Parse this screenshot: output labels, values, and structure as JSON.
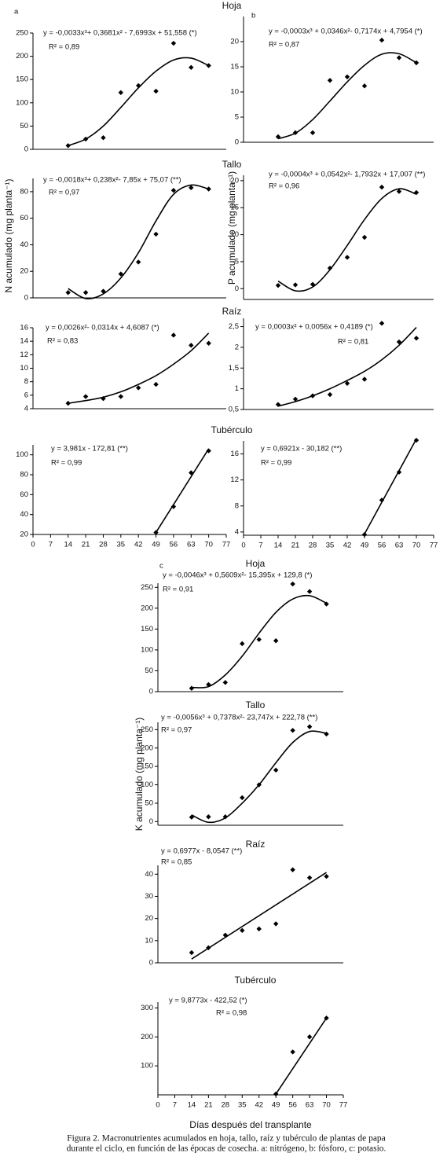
{
  "panel_labels": [
    "a",
    "b",
    "c"
  ],
  "y_labels": [
    "N acumulado (mg planta⁻¹)",
    "P acumulado (mg planta⁻¹)",
    "K acumulado (mg planta⁻¹)"
  ],
  "x_label": "Días después del transplante",
  "caption": [
    "Figura 2. Macronutrientes acumulados en hoja, tallo, raíz y tubérculo de plantas de papa",
    "durante el ciclo, en función de las épocas de cosecha. a: nitrógeno, b: fósforo, c: potasio."
  ],
  "chart_data": [
    {
      "type": "scatter",
      "title": "Hoja",
      "equation": "y = -0,0033x³+ 0,3681x² - 7,6993x + 51,558 (*)",
      "r2": "R² = 0,89",
      "xlim": [
        0,
        77
      ],
      "ylim": [
        0,
        250
      ],
      "yticks": [
        0,
        50,
        100,
        150,
        200,
        250
      ],
      "points": {
        "x": [
          14,
          21,
          28,
          35,
          42,
          49,
          56,
          63,
          70
        ],
        "values": [
          8,
          22,
          25,
          122,
          137,
          125,
          228,
          176,
          180
        ]
      },
      "fit": {
        "x": [
          14,
          21,
          28,
          35,
          42,
          49,
          56,
          63,
          70
        ],
        "values": [
          8,
          22,
          50,
          90,
          132,
          168,
          192,
          196,
          180
        ]
      }
    },
    {
      "type": "scatter",
      "equation": "y = -0,0003x³ + 0,0346x²- 0,7174x + 4,7954 (*)",
      "r2": "R² = 0,87",
      "xlim": [
        0,
        77
      ],
      "ylim": [
        0,
        25
      ],
      "yticks": [
        0,
        5,
        10,
        15,
        20
      ],
      "points": {
        "x": [
          14,
          21,
          28,
          35,
          42,
          49,
          56,
          63,
          70
        ],
        "values": [
          1.1,
          1.9,
          1.9,
          12.3,
          13,
          11.2,
          20.3,
          16.8,
          15.8
        ]
      },
      "fit": {
        "x": [
          14,
          21,
          28,
          35,
          42,
          49,
          56,
          63,
          70
        ],
        "values": [
          0.7,
          1.8,
          4.5,
          8.2,
          12,
          15.3,
          17.5,
          17.6,
          15.8
        ]
      }
    },
    {
      "type": "scatter",
      "title": "Tallo",
      "equation": "y = -0,0018x³+ 0,238x²- 7,85x + 75,07 (**)",
      "r2": "R² = 0,97",
      "xlim": [
        0,
        77
      ],
      "ylim": [
        0,
        90
      ],
      "yticks": [
        0,
        20,
        40,
        60,
        80
      ],
      "points": {
        "x": [
          14,
          21,
          28,
          35,
          42,
          49,
          56,
          63,
          70
        ],
        "values": [
          4,
          4,
          5,
          18,
          27,
          48,
          81,
          83,
          82
        ]
      },
      "fit": {
        "x": [
          14,
          21,
          28,
          35,
          42,
          49,
          56,
          63,
          70
        ],
        "values": [
          7,
          -0.5,
          3,
          15,
          34,
          58,
          78,
          85,
          82
        ]
      }
    },
    {
      "type": "scatter",
      "equation": "y = -0,0004x³ + 0,0542x²- 1,7932x + 17,007 (**)",
      "r2": "R² = 0,96",
      "xlim": [
        0,
        77
      ],
      "ylim": [
        -2,
        21
      ],
      "yticks": [
        0,
        5,
        10,
        15,
        20
      ],
      "points": {
        "x": [
          14,
          21,
          28,
          35,
          42,
          49,
          56,
          63,
          70
        ],
        "values": [
          0.6,
          0.7,
          0.8,
          3.8,
          5.8,
          9.5,
          18.8,
          18,
          17.8
        ]
      },
      "fit": {
        "x": [
          14,
          21,
          28,
          35,
          42,
          49,
          56,
          63,
          70
        ],
        "values": [
          1.4,
          -0.4,
          0.3,
          3.5,
          8,
          12.8,
          16.7,
          18.5,
          17.5
        ]
      }
    },
    {
      "type": "scatter",
      "title": "Raíz",
      "equation": "y = 0,0026x²- 0,0314x + 4,6087 (*)",
      "r2": "R² = 0,83",
      "xlim": [
        0,
        77
      ],
      "ylim": [
        4,
        16
      ],
      "yticks": [
        4,
        6,
        8,
        10,
        12,
        14,
        16
      ],
      "points": {
        "x": [
          14,
          21,
          28,
          35,
          42,
          49,
          56,
          63,
          70
        ],
        "values": [
          4.8,
          5.8,
          5.5,
          5.8,
          7.1,
          7.6,
          14.9,
          13.4,
          13.7
        ]
      },
      "fit": {
        "x": [
          14,
          21,
          28,
          35,
          42,
          49,
          56,
          63,
          70
        ],
        "values": [
          4.8,
          5.2,
          5.7,
          6.5,
          7.6,
          8.9,
          10.6,
          12.6,
          15.2
        ]
      }
    },
    {
      "type": "scatter",
      "equation": "y = 0,0003x² + 0,0056x + 0,4189 (*)",
      "r2": "R² = 0,81",
      "xlim": [
        0,
        77
      ],
      "ylim": [
        0.5,
        2.7
      ],
      "yticks": [
        {
          "value": 0.5,
          "label": "0,5"
        },
        1,
        {
          "value": 1.5,
          "label": "1,5"
        },
        2,
        {
          "value": 2.5,
          "label": "2,5"
        }
      ],
      "points": {
        "x": [
          14,
          21,
          28,
          35,
          42,
          49,
          56,
          63,
          70
        ],
        "values": [
          0.62,
          0.75,
          0.83,
          0.86,
          1.13,
          1.23,
          2.58,
          2.13,
          2.22
        ]
      },
      "fit": {
        "x": [
          14,
          21,
          28,
          35,
          42,
          49,
          56,
          63,
          70
        ],
        "values": [
          0.58,
          0.69,
          0.83,
          1.0,
          1.2,
          1.42,
          1.7,
          2.05,
          2.48
        ]
      }
    },
    {
      "type": "scatter",
      "title": "Tubérculo",
      "equation": "y = 3,981x - 172,81 (**)",
      "r2": "R² = 0,99",
      "xlim": [
        0,
        77
      ],
      "ylim": [
        20,
        110
      ],
      "yticks": [
        20,
        40,
        60,
        80,
        100
      ],
      "xticks": [
        0,
        7,
        14,
        21,
        28,
        35,
        42,
        49,
        56,
        63,
        70,
        77
      ],
      "points": {
        "x": [
          49,
          56,
          63,
          70
        ],
        "values": [
          22,
          48,
          82,
          104
        ]
      },
      "fit": {
        "x": [
          49,
          70
        ],
        "values": [
          22,
          106
        ]
      }
    },
    {
      "type": "scatter",
      "equation": "y = 0,6921x - 30,182 (**)",
      "r2": "R² = 0,99",
      "xlim": [
        0,
        77
      ],
      "ylim": [
        3.5,
        18
      ],
      "yticks": [
        4,
        8,
        12,
        16
      ],
      "xticks": [
        0,
        7,
        14,
        21,
        28,
        35,
        42,
        49,
        56,
        63,
        70,
        77
      ],
      "points": {
        "x": [
          49,
          56,
          63,
          70
        ],
        "values": [
          3.6,
          8.9,
          13.2,
          18.1
        ]
      },
      "fit": {
        "x": [
          49,
          70
        ],
        "values": [
          3.7,
          18.3
        ]
      }
    },
    {
      "type": "scatter",
      "title": "Hoja",
      "equation": "y = -0,0046x³ + 0,5609x²- 15,395x + 129,8 (*)",
      "r2": "R² = 0,91",
      "xlim": [
        0,
        77
      ],
      "ylim": [
        0,
        260
      ],
      "yticks": [
        0,
        50,
        100,
        150,
        200,
        250
      ],
      "points": {
        "x": [
          14,
          21,
          28,
          35,
          42,
          49,
          56,
          63,
          70
        ],
        "values": [
          8,
          17,
          22,
          115,
          125,
          122,
          258,
          240,
          210
        ]
      },
      "fit": {
        "x": [
          14,
          21,
          28,
          35,
          42,
          49,
          56,
          63,
          70
        ],
        "values": [
          10,
          12,
          40,
          85,
          140,
          190,
          222,
          230,
          212
        ]
      }
    },
    {
      "type": "scatter",
      "title": "Tallo",
      "equation": "y = -0,0056x³ + 0,7378x²- 23,747x + 222,78 (**)",
      "r2": "R² = 0,97",
      "xlim": [
        0,
        77
      ],
      "ylim": [
        -10,
        270
      ],
      "yticks": [
        0,
        50,
        100,
        150,
        200,
        250
      ],
      "points": {
        "x": [
          14,
          21,
          28,
          35,
          42,
          49,
          56,
          63,
          70
        ],
        "values": [
          12,
          13,
          13,
          65,
          100,
          140,
          248,
          258,
          238
        ]
      },
      "fit": {
        "x": [
          14,
          21,
          28,
          35,
          42,
          49,
          56,
          63,
          70
        ],
        "values": [
          18,
          -2,
          10,
          50,
          100,
          160,
          215,
          245,
          240
        ]
      }
    },
    {
      "type": "scatter",
      "title": "Raíz",
      "equation": "y = 0,6977x - 8,0547 (**)",
      "r2": "R² = 0,85",
      "xlim": [
        0,
        77
      ],
      "ylim": [
        0,
        44
      ],
      "yticks": [
        0,
        10,
        20,
        30,
        40
      ],
      "points": {
        "x": [
          14,
          21,
          28,
          35,
          42,
          49,
          56,
          63,
          70
        ],
        "values": [
          4.6,
          6.8,
          12.5,
          14.6,
          15.3,
          17.6,
          42,
          38.4,
          39
        ]
      },
      "fit": {
        "x": [
          14,
          70
        ],
        "values": [
          1.7,
          40.8
        ]
      }
    },
    {
      "type": "scatter",
      "title": "Tubérculo",
      "equation": "y = 9,8773x - 422,52 (*)",
      "r2": "R² = 0,98",
      "xlim": [
        0,
        77
      ],
      "ylim": [
        0,
        320
      ],
      "yticks": [
        100,
        200,
        300
      ],
      "xticks": [
        0,
        7,
        14,
        21,
        28,
        35,
        42,
        49,
        56,
        63,
        70,
        77
      ],
      "points": {
        "x": [
          49,
          56,
          63,
          70
        ],
        "values": [
          3,
          148,
          200,
          265
        ]
      },
      "fit": {
        "x": [
          49,
          70
        ],
        "values": [
          3,
          265
        ]
      }
    }
  ]
}
